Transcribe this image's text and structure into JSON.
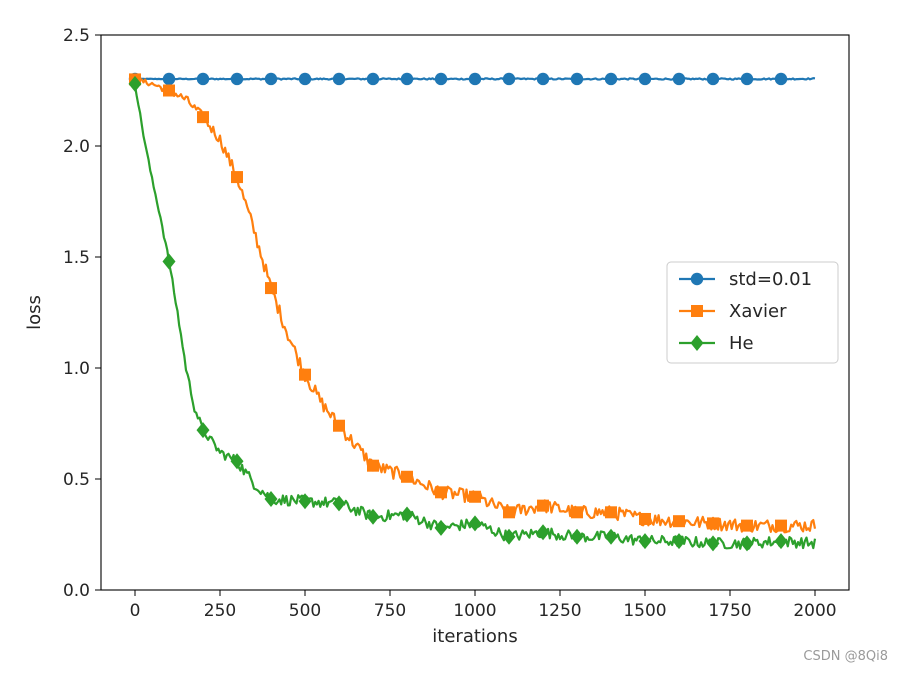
{
  "chart_data": {
    "type": "line",
    "title": "",
    "xlabel": "iterations",
    "ylabel": "loss",
    "xlim": [
      -100,
      2100
    ],
    "ylim": [
      0.0,
      2.5
    ],
    "xticks": [
      0,
      250,
      500,
      750,
      1000,
      1250,
      1500,
      1750,
      2000
    ],
    "xtick_labels": [
      "0",
      "250",
      "500",
      "750",
      "1000",
      "1250",
      "1500",
      "1750",
      "2000"
    ],
    "yticks": [
      0.0,
      0.5,
      1.0,
      1.5,
      2.0,
      2.5
    ],
    "ytick_labels": [
      "0.0",
      "0.5",
      "1.0",
      "1.5",
      "2.0",
      "2.5"
    ],
    "grid": false,
    "legend": "center-right",
    "marker_every": 100,
    "series": [
      {
        "name": "std=0.01",
        "color": "#1f77b4",
        "marker": "circle",
        "x": [
          0,
          100,
          200,
          300,
          400,
          500,
          600,
          700,
          800,
          900,
          1000,
          1100,
          1200,
          1300,
          1400,
          1500,
          1600,
          1700,
          1800,
          1900,
          2000
        ],
        "y": [
          2.302,
          2.302,
          2.302,
          2.302,
          2.302,
          2.302,
          2.302,
          2.302,
          2.302,
          2.302,
          2.302,
          2.302,
          2.302,
          2.302,
          2.302,
          2.302,
          2.302,
          2.302,
          2.302,
          2.302,
          2.303
        ],
        "noise": 0.003
      },
      {
        "name": "Xavier",
        "color": "#ff7f0e",
        "marker": "square",
        "x": [
          0,
          50,
          100,
          150,
          200,
          250,
          300,
          350,
          400,
          450,
          500,
          550,
          600,
          650,
          700,
          800,
          900,
          1000,
          1100,
          1200,
          1300,
          1400,
          1500,
          1600,
          1700,
          1800,
          1900,
          2000
        ],
        "y": [
          2.3,
          2.28,
          2.25,
          2.21,
          2.13,
          2.03,
          1.86,
          1.62,
          1.36,
          1.15,
          0.97,
          0.84,
          0.74,
          0.65,
          0.56,
          0.51,
          0.44,
          0.42,
          0.35,
          0.38,
          0.35,
          0.35,
          0.32,
          0.31,
          0.3,
          0.29,
          0.29,
          0.29
        ],
        "noise": 0.03
      },
      {
        "name": "He",
        "color": "#2ca02c",
        "marker": "diamond",
        "x": [
          0,
          25,
          50,
          75,
          100,
          125,
          150,
          175,
          200,
          250,
          300,
          350,
          400,
          500,
          600,
          700,
          800,
          900,
          1000,
          1100,
          1200,
          1300,
          1400,
          1500,
          1600,
          1700,
          1800,
          1900,
          2000
        ],
        "y": [
          2.28,
          2.05,
          1.85,
          1.68,
          1.48,
          1.25,
          1.0,
          0.82,
          0.72,
          0.62,
          0.58,
          0.48,
          0.41,
          0.4,
          0.39,
          0.33,
          0.34,
          0.28,
          0.3,
          0.24,
          0.26,
          0.24,
          0.24,
          0.22,
          0.22,
          0.21,
          0.21,
          0.22,
          0.21
        ],
        "noise": 0.025
      }
    ]
  },
  "watermark": "CSDN @8Qi8"
}
